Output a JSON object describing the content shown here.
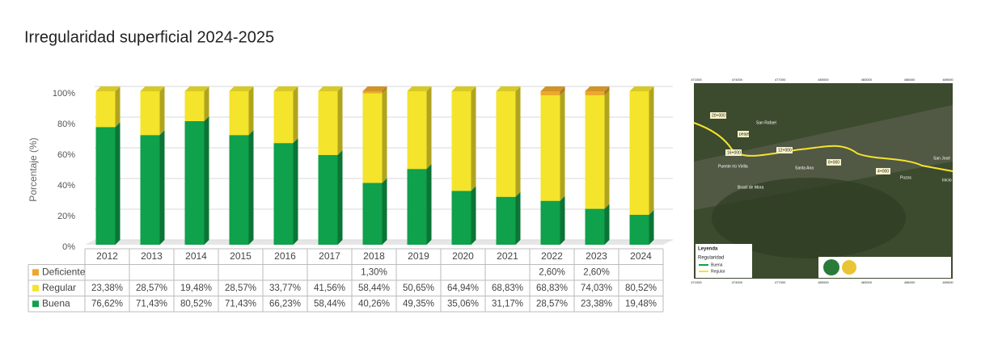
{
  "chart_data": {
    "type": "stacked_bar",
    "title": "Irregularidad superficial 2024-2025",
    "ylabel": "Porcentaje (%)",
    "categories": [
      "2012",
      "2013",
      "2014",
      "2015",
      "2016",
      "2017",
      "2018",
      "2019",
      "2020",
      "2021",
      "2022",
      "2023",
      "2024"
    ],
    "series": [
      {
        "name": "Buena",
        "color": "#0fa14b",
        "values": [
          76.62,
          71.43,
          80.52,
          71.43,
          66.23,
          58.44,
          40.26,
          49.35,
          35.06,
          31.17,
          28.57,
          23.38,
          19.48
        ],
        "value_labels": [
          "76,62%",
          "71,43%",
          "80,52%",
          "71,43%",
          "66,23%",
          "58,44%",
          "40,26%",
          "49,35%",
          "35,06%",
          "31,17%",
          "28,57%",
          "23,38%",
          "19,48%"
        ]
      },
      {
        "name": "Regular",
        "color": "#f4e42b",
        "values": [
          23.38,
          28.57,
          19.48,
          28.57,
          33.77,
          41.56,
          58.44,
          50.65,
          64.94,
          68.83,
          68.83,
          74.03,
          80.52
        ],
        "value_labels": [
          "23,38%",
          "28,57%",
          "19,48%",
          "28,57%",
          "33,77%",
          "41,56%",
          "58,44%",
          "50,65%",
          "64,94%",
          "68,83%",
          "68,83%",
          "74,03%",
          "80,52%"
        ]
      },
      {
        "name": "Deficiente",
        "color": "#eda82c",
        "values": [
          null,
          null,
          null,
          null,
          null,
          null,
          1.3,
          null,
          null,
          null,
          2.6,
          2.6,
          null
        ],
        "value_labels": [
          null,
          null,
          null,
          null,
          null,
          null,
          "1,30%",
          null,
          null,
          null,
          "2,60%",
          "2,60%",
          null
        ]
      }
    ],
    "ylim": [
      0,
      100
    ],
    "yticks": [
      {
        "value": 0,
        "label": "0%"
      },
      {
        "value": 20,
        "label": "20%"
      },
      {
        "value": 40,
        "label": "40%"
      },
      {
        "value": 60,
        "label": "60%"
      },
      {
        "value": 80,
        "label": "80%"
      },
      {
        "value": 100,
        "label": "100%"
      }
    ],
    "grid": true
  },
  "map": {
    "places": [
      "San Rafael",
      "Santa Ana",
      "Brasil de Mora",
      "Pozos",
      "San José",
      "Puente río Virilla",
      "Inicio"
    ],
    "stations": [
      "20+000",
      "16+000",
      "12+000",
      "8+000",
      "4+000"
    ],
    "toll": "peaje",
    "legend": {
      "title": "Leyenda",
      "subtitle": "Regularidad",
      "items": [
        "Buena",
        "Regular"
      ]
    },
    "coords": [
      "471000",
      "474000",
      "477000",
      "480000",
      "483000",
      "486000",
      "489000"
    ]
  }
}
